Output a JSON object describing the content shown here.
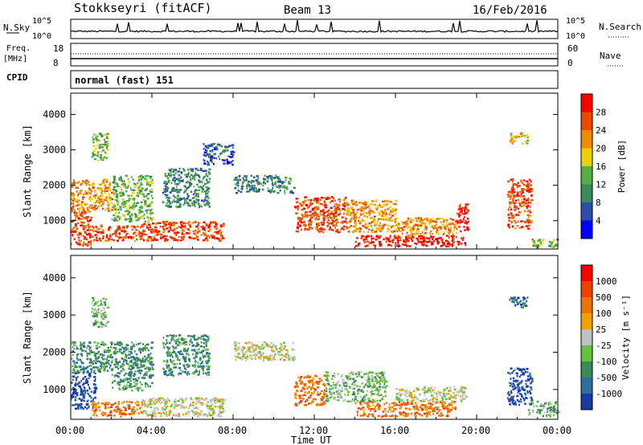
{
  "header": {
    "station": "Stokkseyri (fitACF)",
    "beam": "Beam 13",
    "date": "16/Feb/2016"
  },
  "sky_panel": {
    "left_label": "N.Sky",
    "right_label": "N.Search",
    "left_ticks": [
      "10^5",
      "10^0"
    ],
    "right_ticks": [
      "10^5",
      "10^0"
    ]
  },
  "freq_panel": {
    "left_label_1": "Freq.",
    "left_label_2": "[MHz]",
    "right_label": "Nave",
    "left_ticks": [
      "18",
      "8"
    ],
    "right_ticks": [
      "60",
      "0"
    ]
  },
  "cpid_panel": {
    "label": "CPID",
    "text": "normal (fast) 151"
  },
  "chart_data": [
    {
      "type": "heatmap",
      "name": "Power",
      "xlabel": "",
      "ylabel": "Slant Range [km]",
      "xlim": [
        0,
        24
      ],
      "ylim": [
        200,
        4600
      ],
      "xticks": [
        "00:00",
        "04:00",
        "08:00",
        "12:00",
        "16:00",
        "20:00",
        "00:00"
      ],
      "yticks": [
        1000,
        2000,
        3000,
        4000
      ],
      "colorbar": {
        "label": "Power [dB]",
        "ticks": [
          "4",
          "8",
          "12",
          "16",
          "20",
          "24",
          "28"
        ],
        "colors": [
          "#0000ff",
          "#2a4fa8",
          "#3a8a5a",
          "#55b040",
          "#f0d000",
          "#f08a00",
          "#e84a00",
          "#ff0000"
        ]
      },
      "patches": [
        {
          "t": [
            0.0,
            1.0
          ],
          "r": [
            300,
            1300
          ],
          "level": 6
        },
        {
          "t": [
            0.0,
            2.0
          ],
          "r": [
            1300,
            2200
          ],
          "level": 5
        },
        {
          "t": [
            1.0,
            3.5
          ],
          "r": [
            450,
            900
          ],
          "level": 6
        },
        {
          "t": [
            3.5,
            7.5
          ],
          "r": [
            450,
            1000
          ],
          "level": 6
        },
        {
          "t": [
            2.0,
            4.0
          ],
          "r": [
            1000,
            2300
          ],
          "level": 3
        },
        {
          "t": [
            1.0,
            1.8
          ],
          "r": [
            2700,
            3500
          ],
          "level": 3
        },
        {
          "t": [
            4.5,
            6.8
          ],
          "r": [
            1400,
            2500
          ],
          "level": 2
        },
        {
          "t": [
            6.5,
            8.0
          ],
          "r": [
            2600,
            3200
          ],
          "level": 1
        },
        {
          "t": [
            8.0,
            11.0
          ],
          "r": [
            1800,
            2300
          ],
          "level": 2
        },
        {
          "t": [
            11.0,
            13.5
          ],
          "r": [
            700,
            1700
          ],
          "level": 6
        },
        {
          "t": [
            13.5,
            16.0
          ],
          "r": [
            700,
            1600
          ],
          "level": 5
        },
        {
          "t": [
            14.0,
            19.5
          ],
          "r": [
            300,
            600
          ],
          "level": 7
        },
        {
          "t": [
            16.0,
            19.0
          ],
          "r": [
            600,
            1100
          ],
          "level": 5
        },
        {
          "t": [
            19.0,
            19.6
          ],
          "r": [
            700,
            1500
          ],
          "level": 7
        },
        {
          "t": [
            21.5,
            22.7
          ],
          "r": [
            800,
            2200
          ],
          "level": 6
        },
        {
          "t": [
            21.6,
            22.5
          ],
          "r": [
            3200,
            3500
          ],
          "level": 4
        },
        {
          "t": [
            22.7,
            24.0
          ],
          "r": [
            250,
            500
          ],
          "level": 3
        }
      ]
    },
    {
      "type": "heatmap",
      "name": "Velocity",
      "xlabel": "Time UT",
      "ylabel": "Slant Range [km]",
      "xlim": [
        0,
        24
      ],
      "ylim": [
        200,
        4600
      ],
      "xticks": [
        "00:00",
        "04:00",
        "08:00",
        "12:00",
        "16:00",
        "20:00",
        "00:00"
      ],
      "yticks": [
        1000,
        2000,
        3000,
        4000
      ],
      "colorbar": {
        "label": "Velocity [m s⁻¹]",
        "ticks": [
          "1000",
          "500",
          "100",
          "25",
          "-25",
          "-100",
          "-500",
          "-1000"
        ],
        "colors": [
          "#1a3aa8",
          "#2e6e9e",
          "#3a8a5a",
          "#66c040",
          "#c0c0c0",
          "#f0a000",
          "#f07000",
          "#f04000",
          "#ff0000"
        ]
      },
      "patches": [
        {
          "t": [
            0.0,
            1.2
          ],
          "r": [
            500,
            1500
          ],
          "level": 0
        },
        {
          "t": [
            0.0,
            2.0
          ],
          "r": [
            1500,
            2300
          ],
          "level": 2
        },
        {
          "t": [
            1.0,
            3.5
          ],
          "r": [
            300,
            700
          ],
          "level": 6
        },
        {
          "t": [
            3.5,
            7.5
          ],
          "r": [
            300,
            800
          ],
          "level": 4
        },
        {
          "t": [
            2.0,
            4.0
          ],
          "r": [
            1000,
            2300
          ],
          "level": 2
        },
        {
          "t": [
            1.0,
            1.8
          ],
          "r": [
            2700,
            3500
          ],
          "level": 3
        },
        {
          "t": [
            4.5,
            6.8
          ],
          "r": [
            1400,
            2500
          ],
          "level": 2
        },
        {
          "t": [
            8.0,
            11.0
          ],
          "r": [
            1800,
            2300
          ],
          "level": 4
        },
        {
          "t": [
            11.0,
            12.5
          ],
          "r": [
            600,
            1400
          ],
          "level": 6
        },
        {
          "t": [
            12.5,
            15.5
          ],
          "r": [
            700,
            1500
          ],
          "level": 3
        },
        {
          "t": [
            14.0,
            19.0
          ],
          "r": [
            300,
            700
          ],
          "level": 6
        },
        {
          "t": [
            16.0,
            19.5
          ],
          "r": [
            700,
            1100
          ],
          "level": 4
        },
        {
          "t": [
            21.5,
            22.7
          ],
          "r": [
            600,
            1600
          ],
          "level": 0
        },
        {
          "t": [
            21.6,
            22.5
          ],
          "r": [
            3200,
            3500
          ],
          "level": 1
        },
        {
          "t": [
            22.5,
            24.0
          ],
          "r": [
            300,
            700
          ],
          "level": 3
        }
      ]
    }
  ]
}
